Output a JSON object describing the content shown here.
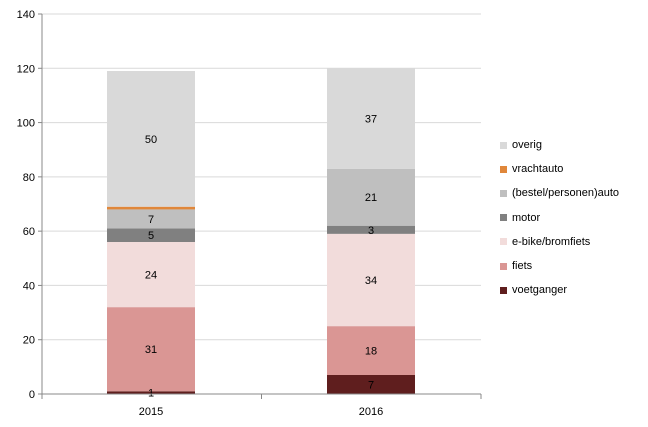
{
  "chart_data": {
    "type": "bar",
    "stacked": true,
    "categories": [
      "2015",
      "2016"
    ],
    "ylim": [
      0,
      140
    ],
    "yticks": [
      "0",
      "20",
      "40",
      "60",
      "80",
      "100",
      "120",
      "140"
    ],
    "grid": true,
    "legend_position": "right",
    "series": [
      {
        "name": "voetganger",
        "color": "#5f1e1e",
        "values": [
          1,
          7
        ]
      },
      {
        "name": "fiets",
        "color": "#da9694",
        "values": [
          31,
          18
        ]
      },
      {
        "name": "e-bike/bromfiets",
        "color": "#f2dcdb",
        "values": [
          24,
          34
        ]
      },
      {
        "name": "motor",
        "color": "#808080",
        "values": [
          5,
          3
        ]
      },
      {
        "name": "(bestel/personen)auto",
        "color": "#bfbfbf",
        "values": [
          7,
          21
        ]
      },
      {
        "name": "vrachtauto",
        "color": "#e0873a",
        "values": [
          1,
          0
        ]
      },
      {
        "name": "overig",
        "color": "#d9d9d9",
        "values": [
          50,
          37
        ]
      }
    ],
    "data_labels": [
      [
        "1",
        "7"
      ],
      [
        "31",
        "18"
      ],
      [
        "24",
        "34"
      ],
      [
        "5",
        "3"
      ],
      [
        "7",
        "21"
      ],
      [
        "",
        ""
      ],
      [
        "50",
        "37"
      ]
    ]
  }
}
